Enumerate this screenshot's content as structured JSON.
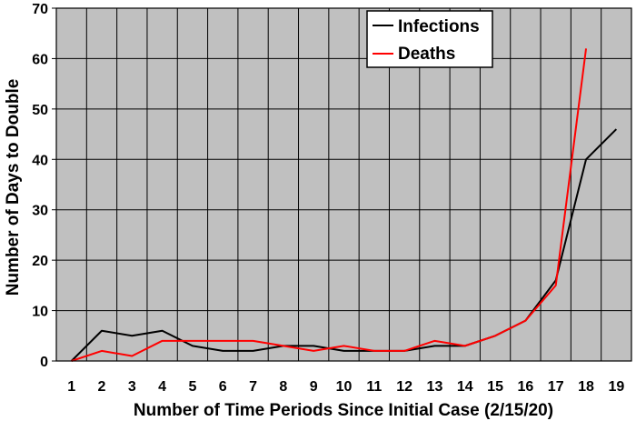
{
  "chart_data": {
    "type": "line",
    "title": "",
    "xlabel": "Number of Time Periods Since Initial Case (2/15/20)",
    "ylabel": "Number of Days to Double",
    "x": [
      1,
      2,
      3,
      4,
      5,
      6,
      7,
      8,
      9,
      10,
      11,
      12,
      13,
      14,
      15,
      16,
      17,
      18,
      19
    ],
    "xlim": [
      0.5,
      19.5
    ],
    "ylim": [
      0,
      70
    ],
    "yticks": [
      0,
      10,
      20,
      30,
      40,
      50,
      60,
      70
    ],
    "grid": true,
    "legend_position": "top-center",
    "plot_background": "#c0c0c0",
    "series": [
      {
        "name": "Infections",
        "color": "#000000",
        "x": [
          1,
          2,
          3,
          4,
          5,
          6,
          7,
          8,
          9,
          10,
          11,
          12,
          13,
          14,
          15,
          16,
          17,
          18,
          19
        ],
        "values": [
          0,
          6,
          5,
          6,
          3,
          2,
          2,
          3,
          3,
          2,
          2,
          2,
          3,
          3,
          5,
          8,
          16,
          40,
          46
        ]
      },
      {
        "name": "Deaths",
        "color": "#ff0000",
        "x": [
          1,
          2,
          3,
          4,
          5,
          6,
          7,
          8,
          9,
          10,
          11,
          12,
          13,
          14,
          15,
          16,
          17,
          18
        ],
        "values": [
          0,
          2,
          1,
          4,
          4,
          4,
          4,
          3,
          2,
          3,
          2,
          2,
          4,
          3,
          5,
          8,
          15,
          62
        ]
      }
    ]
  }
}
